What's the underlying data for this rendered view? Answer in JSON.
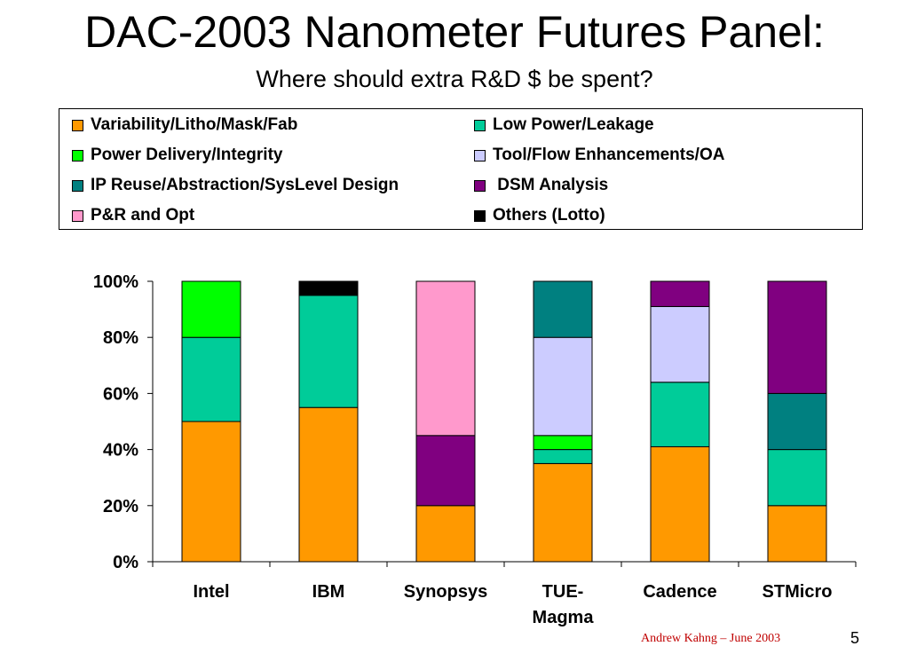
{
  "slide": {
    "title": "DAC-2003 Nanometer Futures Panel:",
    "subtitle": "Where should extra R&D $ be spent?",
    "footer_author": "Andrew Kahng – June 2003",
    "page_number": "5"
  },
  "legend": {
    "items": [
      {
        "label": "Variability/Litho/Mask/Fab",
        "color": "#ff9900"
      },
      {
        "label": "Low Power/Leakage",
        "color": "#00cc99"
      },
      {
        "label": "Power Delivery/Integrity",
        "color": "#00ff00"
      },
      {
        "label": "Tool/Flow Enhancements/OA",
        "color": "#ccccff"
      },
      {
        "label": "IP Reuse/Abstraction/SysLevel Design",
        "color": "#008080"
      },
      {
        "label": " DSM Analysis",
        "color": "#800080"
      },
      {
        "label": "P&R and Opt",
        "color": "#ff99cc"
      },
      {
        "label": "Others (Lotto)",
        "color": "#000000"
      }
    ]
  },
  "chart_data": {
    "type": "bar",
    "stacked": true,
    "title": "",
    "xlabel": "",
    "ylabel": "",
    "ylim": [
      0,
      100
    ],
    "y_ticks": [
      "0%",
      "20%",
      "40%",
      "60%",
      "80%",
      "100%"
    ],
    "categories": [
      "Intel",
      "IBM",
      "Synopsys",
      "TUE-Magma",
      "Cadence",
      "STMicro"
    ],
    "category_lines": [
      [
        "Intel"
      ],
      [
        "IBM"
      ],
      [
        "Synopsys"
      ],
      [
        "TUE-",
        "Magma"
      ],
      [
        "Cadence"
      ],
      [
        "STMicro"
      ]
    ],
    "legend_position": "top",
    "series": [
      {
        "name": "Variability/Litho/Mask/Fab",
        "color": "#ff9900",
        "values": [
          50,
          55,
          20,
          35,
          41,
          20
        ]
      },
      {
        "name": "Low Power/Leakage",
        "color": "#00cc99",
        "values": [
          30,
          40,
          0,
          5,
          23,
          20
        ]
      },
      {
        "name": "Power Delivery/Integrity",
        "color": "#00ff00",
        "values": [
          20,
          0,
          0,
          5,
          0,
          0
        ]
      },
      {
        "name": "Tool/Flow Enhancements/OA",
        "color": "#ccccff",
        "values": [
          0,
          0,
          0,
          35,
          27,
          0
        ]
      },
      {
        "name": "IP Reuse/Abstraction/SysLevel Design",
        "color": "#008080",
        "values": [
          0,
          0,
          0,
          20,
          0,
          20
        ]
      },
      {
        "name": " DSM Analysis",
        "color": "#800080",
        "values": [
          0,
          0,
          25,
          0,
          9,
          40
        ]
      },
      {
        "name": "P&R and Opt",
        "color": "#ff99cc",
        "values": [
          0,
          0,
          55,
          0,
          0,
          0
        ]
      },
      {
        "name": "Others (Lotto)",
        "color": "#000000",
        "values": [
          0,
          5,
          0,
          0,
          0,
          0
        ]
      }
    ]
  }
}
